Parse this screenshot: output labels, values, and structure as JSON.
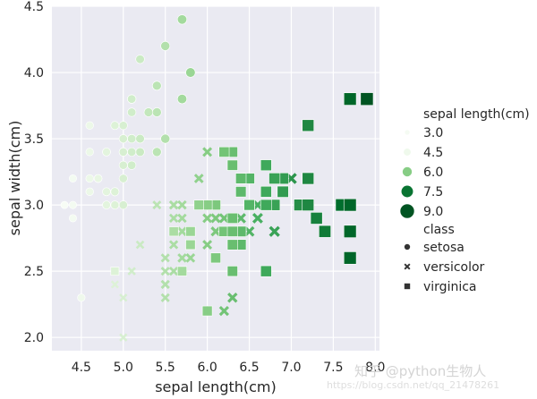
{
  "chart_data": {
    "type": "scatter",
    "title": "",
    "xlabel": "sepal length(cm)",
    "ylabel": "sepal width(cm)",
    "xlim": [
      4.15,
      8.05
    ],
    "ylim": [
      1.9,
      4.5
    ],
    "xticks": [
      4.5,
      5.0,
      5.5,
      6.0,
      6.5,
      7.0,
      7.5,
      8.0
    ],
    "xtick_labels": [
      "4.5",
      "5.0",
      "5.5",
      "6.0",
      "6.5",
      "7.0",
      "7.5",
      "8.0"
    ],
    "yticks": [
      2.0,
      2.5,
      3.0,
      3.5,
      4.0,
      4.5
    ],
    "ytick_labels": [
      "2.0",
      "2.5",
      "3.0",
      "3.5",
      "4.0",
      "4.5"
    ],
    "grid": true,
    "legend_position": "right",
    "hue_legend_title": "sepal length(cm)",
    "hue_legend": [
      {
        "label": "3.0",
        "value": 3.0
      },
      {
        "label": "4.5",
        "value": 4.5
      },
      {
        "label": "6.0",
        "value": 6.0
      },
      {
        "label": "7.5",
        "value": 7.5
      },
      {
        "label": "9.0",
        "value": 9.0
      }
    ],
    "style_legend_title": "class",
    "style_legend": [
      {
        "label": "setosa",
        "marker": "circle"
      },
      {
        "label": "versicolor",
        "marker": "x"
      },
      {
        "label": "virginica",
        "marker": "square"
      }
    ],
    "series": [
      {
        "name": "setosa",
        "marker": "circle",
        "points": [
          [
            5.1,
            3.5
          ],
          [
            4.9,
            3.0
          ],
          [
            4.7,
            3.2
          ],
          [
            4.6,
            3.1
          ],
          [
            5.0,
            3.6
          ],
          [
            5.4,
            3.9
          ],
          [
            4.6,
            3.4
          ],
          [
            5.0,
            3.4
          ],
          [
            4.4,
            2.9
          ],
          [
            4.9,
            3.1
          ],
          [
            5.4,
            3.7
          ],
          [
            4.8,
            3.4
          ],
          [
            4.8,
            3.0
          ],
          [
            4.3,
            3.0
          ],
          [
            5.8,
            4.0
          ],
          [
            5.7,
            4.4
          ],
          [
            5.4,
            3.9
          ],
          [
            5.1,
            3.5
          ],
          [
            5.7,
            3.8
          ],
          [
            5.1,
            3.8
          ],
          [
            5.4,
            3.4
          ],
          [
            5.1,
            3.7
          ],
          [
            4.6,
            3.6
          ],
          [
            5.1,
            3.3
          ],
          [
            4.8,
            3.4
          ],
          [
            5.0,
            3.0
          ],
          [
            5.0,
            3.4
          ],
          [
            5.2,
            3.5
          ],
          [
            5.2,
            3.4
          ],
          [
            4.7,
            3.2
          ],
          [
            4.8,
            3.1
          ],
          [
            5.4,
            3.4
          ],
          [
            5.2,
            4.1
          ],
          [
            5.5,
            4.2
          ],
          [
            4.9,
            3.1
          ],
          [
            5.0,
            3.2
          ],
          [
            5.5,
            3.5
          ],
          [
            4.9,
            3.6
          ],
          [
            4.4,
            3.0
          ],
          [
            5.1,
            3.4
          ],
          [
            5.0,
            3.5
          ],
          [
            4.5,
            2.3
          ],
          [
            4.4,
            3.2
          ],
          [
            5.0,
            3.5
          ],
          [
            5.1,
            3.8
          ],
          [
            4.8,
            3.0
          ],
          [
            5.1,
            3.8
          ],
          [
            4.6,
            3.2
          ],
          [
            5.3,
            3.7
          ],
          [
            5.0,
            3.3
          ]
        ]
      },
      {
        "name": "versicolor",
        "marker": "x",
        "points": [
          [
            7.0,
            3.2
          ],
          [
            6.4,
            3.2
          ],
          [
            6.9,
            3.1
          ],
          [
            5.5,
            2.3
          ],
          [
            6.5,
            2.8
          ],
          [
            5.7,
            2.8
          ],
          [
            6.3,
            3.3
          ],
          [
            4.9,
            2.4
          ],
          [
            6.6,
            2.9
          ],
          [
            5.2,
            2.7
          ],
          [
            5.0,
            2.0
          ],
          [
            5.9,
            3.0
          ],
          [
            6.0,
            2.2
          ],
          [
            6.1,
            2.9
          ],
          [
            5.6,
            2.9
          ],
          [
            6.7,
            3.1
          ],
          [
            5.6,
            3.0
          ],
          [
            5.8,
            2.7
          ],
          [
            6.2,
            2.2
          ],
          [
            5.6,
            2.5
          ],
          [
            5.9,
            3.2
          ],
          [
            6.1,
            2.8
          ],
          [
            6.3,
            2.5
          ],
          [
            6.1,
            2.8
          ],
          [
            6.4,
            2.9
          ],
          [
            6.6,
            3.0
          ],
          [
            6.8,
            2.8
          ],
          [
            6.7,
            3.0
          ],
          [
            6.0,
            2.9
          ],
          [
            5.7,
            2.6
          ],
          [
            5.5,
            2.4
          ],
          [
            5.5,
            2.4
          ],
          [
            5.8,
            2.7
          ],
          [
            6.0,
            2.7
          ],
          [
            5.4,
            3.0
          ],
          [
            6.0,
            3.4
          ],
          [
            6.7,
            3.1
          ],
          [
            6.3,
            2.3
          ],
          [
            5.6,
            3.0
          ],
          [
            5.5,
            2.5
          ],
          [
            5.5,
            2.6
          ],
          [
            6.1,
            3.0
          ],
          [
            5.8,
            2.6
          ],
          [
            5.0,
            2.3
          ],
          [
            5.6,
            2.7
          ],
          [
            5.7,
            3.0
          ],
          [
            5.7,
            2.9
          ],
          [
            6.2,
            2.9
          ],
          [
            5.1,
            2.5
          ],
          [
            5.7,
            2.8
          ]
        ]
      },
      {
        "name": "virginica",
        "marker": "square",
        "points": [
          [
            6.3,
            3.3
          ],
          [
            5.8,
            2.7
          ],
          [
            7.1,
            3.0
          ],
          [
            6.3,
            2.9
          ],
          [
            6.5,
            3.0
          ],
          [
            7.6,
            3.0
          ],
          [
            4.9,
            2.5
          ],
          [
            7.3,
            2.9
          ],
          [
            6.7,
            2.5
          ],
          [
            7.2,
            3.6
          ],
          [
            6.5,
            3.2
          ],
          [
            6.4,
            2.7
          ],
          [
            6.8,
            3.0
          ],
          [
            5.7,
            2.5
          ],
          [
            5.8,
            2.8
          ],
          [
            6.4,
            3.2
          ],
          [
            6.5,
            3.0
          ],
          [
            7.7,
            3.8
          ],
          [
            7.7,
            2.6
          ],
          [
            6.0,
            2.2
          ],
          [
            6.9,
            3.2
          ],
          [
            5.6,
            2.8
          ],
          [
            7.7,
            2.8
          ],
          [
            6.3,
            2.7
          ],
          [
            6.7,
            3.3
          ],
          [
            7.2,
            3.2
          ],
          [
            6.2,
            2.8
          ],
          [
            6.1,
            3.0
          ],
          [
            6.4,
            2.8
          ],
          [
            7.2,
            3.0
          ],
          [
            7.4,
            2.8
          ],
          [
            7.9,
            3.8
          ],
          [
            6.4,
            2.8
          ],
          [
            6.3,
            2.8
          ],
          [
            6.1,
            2.6
          ],
          [
            7.7,
            3.0
          ],
          [
            6.3,
            3.4
          ],
          [
            6.4,
            3.1
          ],
          [
            6.0,
            3.0
          ],
          [
            6.9,
            3.1
          ],
          [
            6.7,
            3.1
          ],
          [
            6.9,
            3.1
          ],
          [
            5.8,
            2.7
          ],
          [
            6.8,
            3.2
          ],
          [
            6.7,
            3.3
          ],
          [
            6.7,
            3.0
          ],
          [
            6.3,
            2.5
          ],
          [
            6.5,
            3.0
          ],
          [
            6.2,
            3.4
          ],
          [
            5.9,
            3.0
          ]
        ]
      }
    ]
  },
  "watermark": {
    "text": "知乎 @python生物人",
    "url": "https://blog.csdn.net/qq_21478261"
  }
}
